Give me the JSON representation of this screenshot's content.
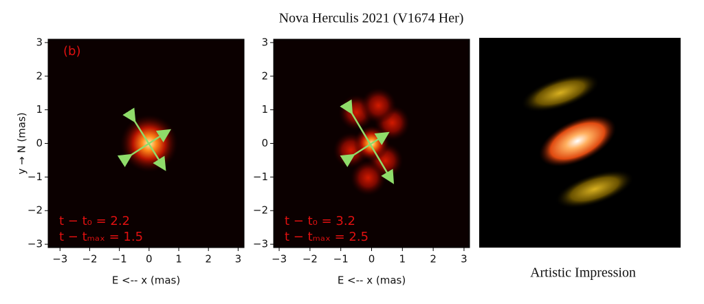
{
  "title": "Nova Herculis 2021 (V1674 Her)",
  "caption": "Artistic Impression",
  "chart_data": [
    {
      "type": "image",
      "panel_label": "(b)",
      "xlabel": "E <-- x (mas)",
      "ylabel": "y → N (mas)",
      "xlim": [
        -3.4,
        3.2
      ],
      "ylim": [
        -3.1,
        3.1
      ],
      "xticks": [
        {
          "value": -3,
          "label": "−3"
        },
        {
          "value": -2,
          "label": "−2"
        },
        {
          "value": -1,
          "label": "−1"
        },
        0,
        1,
        2,
        3
      ],
      "yticks": [
        {
          "value": -3,
          "label": "−3"
        },
        {
          "value": -2,
          "label": "−2"
        },
        {
          "value": -1,
          "label": "−1"
        },
        0,
        1,
        2,
        3
      ],
      "annotations": [
        "t − t₀ = 2.2",
        "t − tₘₐₓ = 1.5"
      ]
    },
    {
      "type": "image",
      "xlabel": "E <-- x (mas)",
      "xlim": [
        -3.18,
        3.18
      ],
      "ylim": [
        -3.1,
        3.1
      ],
      "xticks": [
        {
          "value": -3,
          "label": "−3"
        },
        {
          "value": -2,
          "label": "−2"
        },
        {
          "value": -1,
          "label": "−1"
        },
        0,
        1,
        2,
        3
      ],
      "yticks": [
        {
          "value": -3,
          "label": "−3"
        },
        {
          "value": -2,
          "label": "−2"
        },
        {
          "value": -1,
          "label": "−1"
        },
        0,
        1,
        2,
        3
      ],
      "annotations": [
        "t − t₀ = 3.2",
        "t − tₘₐₓ = 2.5"
      ]
    }
  ]
}
